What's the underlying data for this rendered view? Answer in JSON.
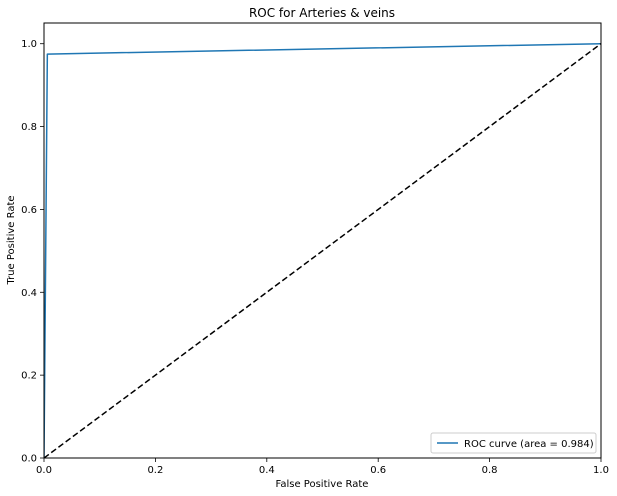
{
  "chart_data": {
    "type": "line",
    "title": "ROC for Arteries & veins",
    "xlabel": "False Positive Rate",
    "ylabel": "True Positive Rate",
    "xlim": [
      0.0,
      1.0
    ],
    "ylim": [
      0.0,
      1.05
    ],
    "x_ticks": [
      "0.0",
      "0.2",
      "0.4",
      "0.6",
      "0.8",
      "1.0"
    ],
    "y_ticks": [
      "0.0",
      "0.2",
      "0.4",
      "0.6",
      "0.8",
      "1.0"
    ],
    "grid": false,
    "legend_position": "bottom-right",
    "series": [
      {
        "name": "ROC curve (area = 0.984)",
        "color": "#1f77b4",
        "style": "solid",
        "x": [
          0.0,
          0.006,
          1.0
        ],
        "y": [
          0.0,
          0.975,
          1.0
        ]
      },
      {
        "color": "#000000",
        "style": "dashed",
        "x": [
          0.0,
          1.0
        ],
        "y": [
          0.0,
          1.0
        ]
      }
    ]
  }
}
